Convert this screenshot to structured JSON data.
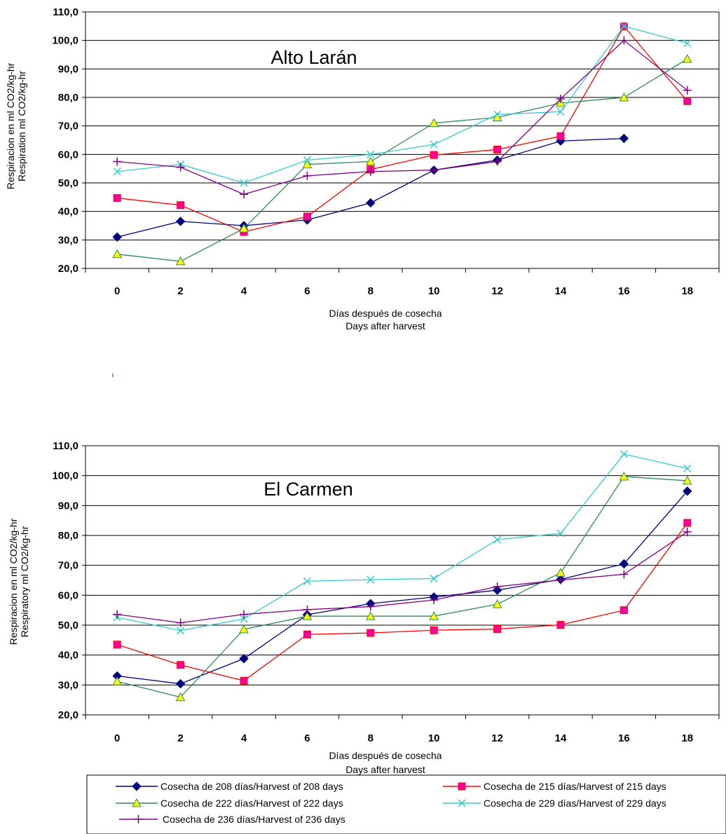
{
  "chart_data": [
    {
      "type": "line",
      "title": "Alto Larán",
      "xlabel": "Días después de cosecha",
      "xlabel2": "Days after harvest",
      "ylabel": "Respiracion en ml CO2/kg-hr",
      "ylabel2": "Respiration ml CO2/kg-hr",
      "x": [
        0,
        2,
        4,
        6,
        8,
        10,
        12,
        14,
        16,
        18
      ],
      "ylim": [
        20,
        110
      ],
      "yticks": [
        20,
        30,
        40,
        50,
        60,
        70,
        80,
        90,
        100,
        110
      ],
      "ytick_labels": [
        "20,0",
        "30,0",
        "40,0",
        "50,0",
        "60,0",
        "70,0",
        "80,0",
        "90,0",
        "100,0",
        "110,0"
      ],
      "grid": "horizontal",
      "series": [
        {
          "name": "Cosecha de 208 días/Harvest of 208 days",
          "values": [
            31,
            36.5,
            35,
            37,
            43,
            54.5,
            58,
            64.7,
            65.6,
            null
          ]
        },
        {
          "name": "Cosecha de 215 días/Harvest of 215 days",
          "values": [
            44.7,
            42.2,
            32.8,
            38.2,
            54.7,
            59.8,
            61.7,
            66.4,
            104.9,
            78.7
          ]
        },
        {
          "name": "Cosecha de 222 días/Harvest of 222 days",
          "values": [
            25,
            22.5,
            34,
            56.5,
            57.5,
            71,
            73,
            78,
            80,
            93.5
          ]
        },
        {
          "name": "Cosecha de 229 días/Harvest of 229 days",
          "values": [
            54,
            56.5,
            50,
            58,
            60,
            63.5,
            74,
            75,
            105,
            99
          ]
        },
        {
          "name": "Cosecha de 236 días/Harvest of 236 days",
          "values": [
            57.5,
            55.5,
            46,
            52.5,
            54,
            54.5,
            57.5,
            79.5,
            100,
            82.5
          ]
        }
      ]
    },
    {
      "type": "line",
      "title": "El Carmen",
      "xlabel": "Días después de cosecha",
      "xlabel2": "Days after  harvest",
      "ylabel": "Respiracion en ml CO2/kg-hr",
      "ylabel2": "Respiratory ml CO2/kg-hr",
      "x": [
        0,
        2,
        4,
        6,
        8,
        10,
        12,
        14,
        16,
        18
      ],
      "ylim": [
        20,
        110
      ],
      "yticks": [
        20,
        30,
        40,
        50,
        60,
        70,
        80,
        90,
        100,
        110
      ],
      "ytick_labels": [
        "20,0",
        "30,0",
        "40,0",
        "50,0",
        "60,0",
        "70,0",
        "80,0",
        "90,0",
        "100,0",
        "110,0"
      ],
      "grid": "horizontal",
      "series": [
        {
          "name": "Cosecha de 208 días/Harvest of 208 days",
          "values": [
            33,
            30.4,
            38.8,
            53.5,
            57.2,
            59.4,
            61.7,
            65.3,
            70.5,
            94.8
          ]
        },
        {
          "name": "Cosecha de 215 días/Harvest of 215 days",
          "values": [
            43.5,
            36.7,
            31.4,
            46.9,
            47.4,
            48.3,
            48.7,
            50.1,
            55,
            84.2
          ]
        },
        {
          "name": "Cosecha de 222 días/Harvest of 222 days",
          "values": [
            31.2,
            25.9,
            48.6,
            53,
            53,
            53,
            57,
            67.5,
            99.7,
            98.3
          ]
        },
        {
          "name": "Cosecha de 229 días/Harvest of 229 days",
          "values": [
            52.6,
            48.2,
            52.1,
            64.7,
            65.2,
            65.6,
            78.6,
            80.7,
            107.2,
            102.4
          ]
        },
        {
          "name": "Cosecha de 236 días/Harvest of 236 days",
          "values": [
            53.6,
            50.8,
            53.6,
            55.2,
            56.2,
            58.4,
            62.9,
            65.1,
            67,
            81.2
          ]
        }
      ]
    }
  ],
  "series_styles": [
    {
      "color": "#00007F",
      "marker": "diamond"
    },
    {
      "color": "#FF0000",
      "marker": "square",
      "fill": "#FF00A0"
    },
    {
      "color": "#2E8B57",
      "marker": "triangle",
      "fill": "#FFFF00"
    },
    {
      "color": "#33CCCC",
      "marker": "x"
    },
    {
      "color": "#800080",
      "marker": "plus"
    }
  ],
  "legend": {
    "placement": "bottom",
    "entries": [
      "Cosecha de 208 días/Harvest of 208 days",
      "Cosecha de 215 días/Harvest of 215 days",
      "Cosecha de 222 días/Harvest of 222 days",
      "Cosecha de 229 días/Harvest of 229 days",
      "Cosecha de 236 días/Harvest of 236 days"
    ]
  }
}
